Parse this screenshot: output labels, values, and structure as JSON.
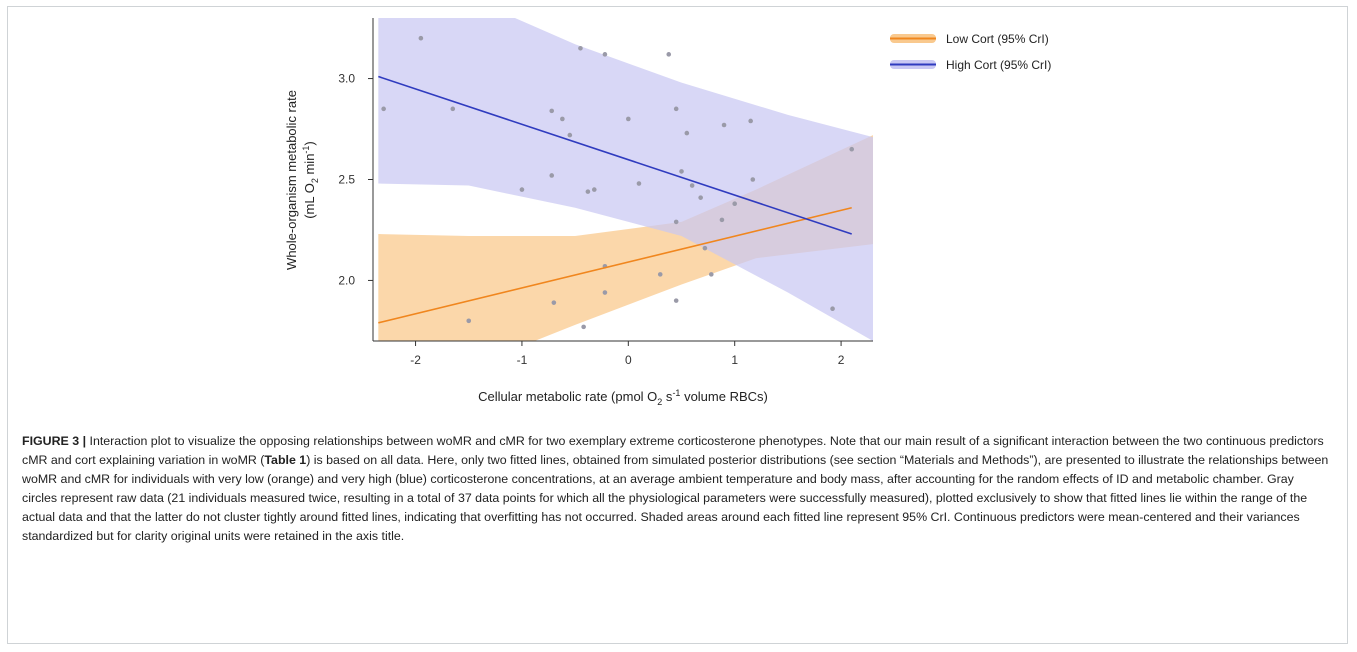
{
  "chart_data": {
    "type": "line",
    "xlabel_main": "Cellular metabolic rate (pmol O",
    "xlabel_sub": "2",
    "xlabel_mid": " s",
    "xlabel_sup": "-1",
    "xlabel_end": " volume RBCs)",
    "ylabel_line1": "Whole-organism metabolic rate",
    "ylabel_line2_a": "(mL O",
    "ylabel_line2_sub": "2",
    "ylabel_line2_b": " min",
    "ylabel_line2_sup": "-1",
    "ylabel_line2_c": ")",
    "xlim": [
      -2.4,
      2.3
    ],
    "ylim": [
      1.7,
      3.3
    ],
    "xticks": [
      -2,
      -1,
      0,
      1,
      2
    ],
    "xtick_labels": [
      "-2",
      "-1",
      "0",
      "1",
      "2"
    ],
    "yticks": [
      2.0,
      2.5,
      3.0
    ],
    "ytick_labels": [
      "2.0",
      "2.5",
      "3.0"
    ],
    "grid": false,
    "legend_position": "top-right-outside",
    "series": [
      {
        "name": "Low Cort (95% CrI)",
        "color": "#f0861e",
        "band_color": "#f9c98e",
        "line": [
          [
            -2.35,
            1.79
          ],
          [
            2.1,
            2.36
          ]
        ],
        "band_upper": [
          [
            -2.35,
            2.23
          ],
          [
            -1.5,
            2.22
          ],
          [
            -0.5,
            2.22
          ],
          [
            0.5,
            2.29
          ],
          [
            1.2,
            2.45
          ],
          [
            2.3,
            2.72
          ]
        ],
        "band_lower": [
          [
            -2.35,
            1.5
          ],
          [
            -1.5,
            1.57
          ],
          [
            -0.5,
            1.78
          ],
          [
            0.5,
            1.98
          ],
          [
            1.2,
            2.11
          ],
          [
            2.3,
            2.18
          ]
        ]
      },
      {
        "name": "High Cort (95% CrI)",
        "color": "#2f3bbf",
        "band_color": "#c9c8f3",
        "line": [
          [
            -2.35,
            3.01
          ],
          [
            2.1,
            2.23
          ]
        ],
        "band_upper": [
          [
            -2.35,
            3.55
          ],
          [
            -1.5,
            3.4
          ],
          [
            -0.5,
            3.17
          ],
          [
            0.5,
            2.98
          ],
          [
            1.5,
            2.82
          ],
          [
            2.3,
            2.71
          ]
        ],
        "band_lower": [
          [
            -2.35,
            2.48
          ],
          [
            -1.5,
            2.47
          ],
          [
            -0.5,
            2.36
          ],
          [
            0.5,
            2.22
          ],
          [
            1.5,
            1.94
          ],
          [
            2.3,
            1.7
          ]
        ]
      }
    ],
    "points": [
      {
        "x": -2.3,
        "y": 2.85
      },
      {
        "x": -1.95,
        "y": 3.2
      },
      {
        "x": -1.65,
        "y": 2.85
      },
      {
        "x": -1.5,
        "y": 1.8
      },
      {
        "x": -1.0,
        "y": 2.45
      },
      {
        "x": -0.72,
        "y": 2.84
      },
      {
        "x": -0.72,
        "y": 2.52
      },
      {
        "x": -0.7,
        "y": 1.89
      },
      {
        "x": -0.62,
        "y": 2.8
      },
      {
        "x": -0.55,
        "y": 2.72
      },
      {
        "x": -0.45,
        "y": 3.15
      },
      {
        "x": -0.42,
        "y": 1.77
      },
      {
        "x": -0.38,
        "y": 2.44
      },
      {
        "x": -0.32,
        "y": 2.45
      },
      {
        "x": -0.22,
        "y": 3.12
      },
      {
        "x": -0.22,
        "y": 2.07
      },
      {
        "x": -0.22,
        "y": 1.94
      },
      {
        "x": 0.0,
        "y": 2.8
      },
      {
        "x": 0.1,
        "y": 2.48
      },
      {
        "x": 0.3,
        "y": 2.03
      },
      {
        "x": 0.38,
        "y": 3.12
      },
      {
        "x": 0.45,
        "y": 2.85
      },
      {
        "x": 0.45,
        "y": 2.29
      },
      {
        "x": 0.45,
        "y": 1.9
      },
      {
        "x": 0.5,
        "y": 2.54
      },
      {
        "x": 0.55,
        "y": 2.73
      },
      {
        "x": 0.6,
        "y": 2.47
      },
      {
        "x": 0.68,
        "y": 2.41
      },
      {
        "x": 0.72,
        "y": 2.16
      },
      {
        "x": 0.78,
        "y": 2.03
      },
      {
        "x": 0.88,
        "y": 2.3
      },
      {
        "x": 0.9,
        "y": 2.77
      },
      {
        "x": 1.0,
        "y": 2.38
      },
      {
        "x": 1.15,
        "y": 2.79
      },
      {
        "x": 1.17,
        "y": 2.5
      },
      {
        "x": 1.92,
        "y": 1.86
      },
      {
        "x": 2.1,
        "y": 2.65
      }
    ],
    "point_color": "#9a9aa8"
  },
  "caption": {
    "label": "FIGURE 3 |",
    "text_1": " Interaction plot to visualize the opposing relationships between woMR and cMR for two exemplary extreme corticosterone phenotypes. Note that our main result of a significant interaction between the two continuous predictors cMR and cort explaining variation in woMR (",
    "table_ref": "Table 1",
    "text_2": ") is based on all data. Here, only two fitted lines, obtained from simulated posterior distributions (see section “Materials and Methods”), are presented to illustrate the relationships between woMR and cMR for individuals with very low (orange) and very high (blue) corticosterone concentrations, at an average ambient temperature and body mass, after accounting for the random effects of ID and metabolic chamber. Gray circles represent raw data (21 individuals measured twice, resulting in a total of 37 data points for which all the physiological parameters were successfully measured), plotted exclusively to show that fitted lines lie within the range of the actual data and that the latter do not cluster tightly around fitted lines, indicating that overfitting has not occurred. Shaded areas around each fitted line represent 95% CrI. Continuous predictors were mean-centered and their variances standardized but for clarity original units were retained in the axis title."
  }
}
